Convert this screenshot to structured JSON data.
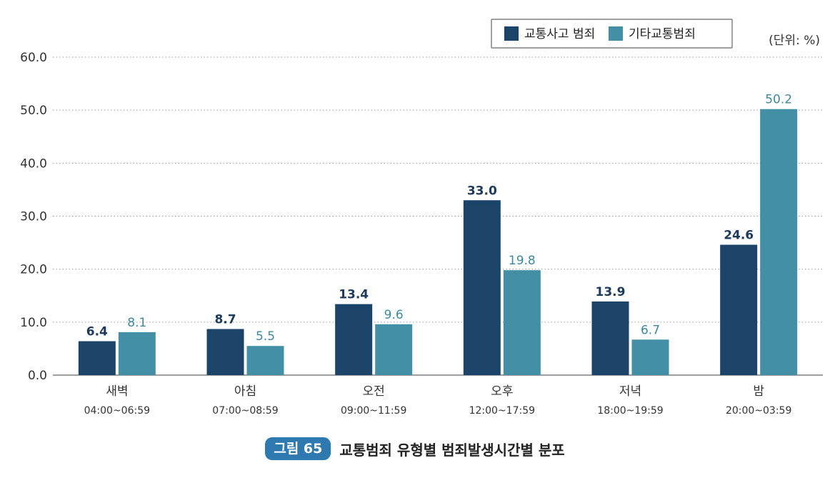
{
  "chart_data": {
    "type": "bar",
    "categories": [
      "새벽",
      "아침",
      "오전",
      "오후",
      "저녁",
      "밤"
    ],
    "category_ranges": [
      "04:00~06:59",
      "07:00~08:59",
      "09:00~11:59",
      "12:00~17:59",
      "18:00~19:59",
      "20:00~03:59"
    ],
    "series": [
      {
        "name": "교통사고 범죄",
        "values": [
          6.4,
          8.7,
          13.4,
          33.0,
          13.9,
          24.6
        ],
        "labels": [
          "6.4",
          "8.7",
          "13.4",
          "33.0",
          "13.9",
          "24.6"
        ],
        "color": "#1c4468",
        "label_color": "#1c3a5c"
      },
      {
        "name": "기타교통범죄",
        "values": [
          8.1,
          5.5,
          9.6,
          19.8,
          6.7,
          50.2
        ],
        "labels": [
          "8.1",
          "5.5",
          "9.6",
          "19.8",
          "6.7",
          "50.2"
        ],
        "color": "#4390a6",
        "label_color": "#3d88a0"
      }
    ],
    "ylim": [
      0,
      60
    ],
    "yticks": [
      "0.0",
      "10.0",
      "20.0",
      "30.0",
      "40.0",
      "50.0",
      "60.0"
    ],
    "unit": "(단위: %)",
    "grid": true,
    "legend_position": "top-right"
  },
  "caption": {
    "figure_label": "그림 65",
    "title": "교통범죄 유형별 범죄발생시간별 분포"
  }
}
